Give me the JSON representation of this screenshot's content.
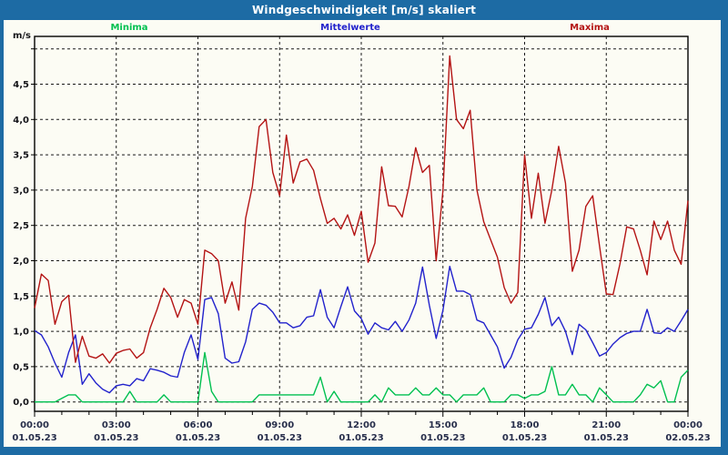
{
  "window": {
    "title": "Windgeschwindigkeit [m/s] skaliert"
  },
  "chart_data": {
    "type": "line",
    "title": "Windgeschwindigkeit [m/s] skaliert",
    "ylabel": "m/s",
    "xlabel": "",
    "x_start_hour": 0,
    "x_end_hour": 24,
    "x_step_minutes": 15,
    "grid": "both-dashed",
    "legend_position": "top",
    "ylim": [
      0,
      5
    ],
    "x_ticks": [
      {
        "hour": 0,
        "time": "00:00",
        "date": "01.05.23"
      },
      {
        "hour": 3,
        "time": "03:00",
        "date": "01.05.23"
      },
      {
        "hour": 6,
        "time": "06:00",
        "date": "01.05.23"
      },
      {
        "hour": 9,
        "time": "09:00",
        "date": "01.05.23"
      },
      {
        "hour": 12,
        "time": "12:00",
        "date": "01.05.23"
      },
      {
        "hour": 15,
        "time": "15:00",
        "date": "01.05.23"
      },
      {
        "hour": 18,
        "time": "18:00",
        "date": "01.05.23"
      },
      {
        "hour": 21,
        "time": "21:00",
        "date": "01.05.23"
      },
      {
        "hour": 24,
        "time": "00:00",
        "date": "02.05.23"
      }
    ],
    "y_grid": {
      "min": 0,
      "max": 5,
      "step": 0.5
    },
    "y_tick_labels": [
      "0,0",
      "0,5",
      "1,0",
      "1,5",
      "2,0",
      "2,5",
      "3,0",
      "3,5",
      "4,0",
      "4,5"
    ],
    "series": [
      {
        "key": "minima",
        "name": "Minima",
        "color": "#00c050",
        "values": [
          0,
          0,
          0,
          0,
          0.05,
          0.1,
          0.1,
          0,
          0,
          0,
          0,
          0,
          0,
          0,
          0.15,
          0,
          0,
          0,
          0,
          0.1,
          0,
          0,
          0,
          0,
          0,
          0.7,
          0.15,
          0,
          0,
          0,
          0,
          0,
          0,
          0.1,
          0.1,
          0.1,
          0.1,
          0.1,
          0.1,
          0.1,
          0.1,
          0.1,
          0.35,
          0,
          0.15,
          0,
          0,
          0,
          0,
          0,
          0.1,
          0,
          0.2,
          0.1,
          0.1,
          0.1,
          0.2,
          0.1,
          0.1,
          0.2,
          0.1,
          0.1,
          0,
          0.1,
          0.1,
          0.1,
          0.2,
          0,
          0,
          0,
          0.1,
          0.1,
          0.05,
          0.1,
          0.1,
          0.15,
          0.5,
          0.1,
          0.1,
          0.25,
          0.1,
          0.1,
          0,
          0.2,
          0.1,
          0,
          0,
          0,
          0,
          0.1,
          0.25,
          0.2,
          0.3,
          0,
          0,
          0.35,
          0.45
        ]
      },
      {
        "key": "mittelwerte",
        "name": "Mittelwerte",
        "color": "#2222cc",
        "values": [
          1.01,
          0.95,
          0.78,
          0.55,
          0.35,
          0.7,
          0.95,
          0.25,
          0.4,
          0.27,
          0.18,
          0.13,
          0.23,
          0.25,
          0.23,
          0.33,
          0.3,
          0.47,
          0.45,
          0.42,
          0.37,
          0.35,
          0.7,
          0.95,
          0.6,
          1.45,
          1.48,
          1.25,
          0.62,
          0.55,
          0.57,
          0.85,
          1.31,
          1.4,
          1.37,
          1.27,
          1.12,
          1.12,
          1.05,
          1.08,
          1.2,
          1.22,
          1.59,
          1.2,
          1.05,
          1.35,
          1.63,
          1.29,
          1.18,
          0.96,
          1.12,
          1.05,
          1.02,
          1.14,
          1,
          1.16,
          1.4,
          1.91,
          1.37,
          0.9,
          1.3,
          1.92,
          1.57,
          1.57,
          1.52,
          1.16,
          1.12,
          0.95,
          0.78,
          0.48,
          0.63,
          0.88,
          1.03,
          1.05,
          1.24,
          1.48,
          1.08,
          1.2,
          1,
          0.67,
          1.1,
          1.02,
          0.84,
          0.65,
          0.7,
          0.82,
          0.91,
          0.97,
          1,
          1,
          1.31,
          0.98,
          0.97,
          1.05,
          1,
          1.15,
          1.31
        ]
      },
      {
        "key": "maxima",
        "name": "Maxima",
        "color": "#b41414",
        "values": [
          1.33,
          1.81,
          1.72,
          1.1,
          1.42,
          1.51,
          0.56,
          0.93,
          0.65,
          0.62,
          0.68,
          0.55,
          0.69,
          0.73,
          0.75,
          0.62,
          0.7,
          1.05,
          1.31,
          1.61,
          1.48,
          1.2,
          1.45,
          1.4,
          1.1,
          2.15,
          2.1,
          2,
          1.4,
          1.7,
          1.3,
          2.6,
          3.05,
          3.9,
          4,
          3.25,
          2.92,
          3.78,
          3.1,
          3.4,
          3.44,
          3.28,
          2.88,
          2.53,
          2.6,
          2.45,
          2.65,
          2.36,
          2.7,
          1.98,
          2.25,
          3.33,
          2.78,
          2.77,
          2.62,
          3.05,
          3.6,
          3.25,
          3.35,
          2,
          3,
          4.9,
          4,
          3.87,
          4.13,
          3,
          2.55,
          2.3,
          2.05,
          1.62,
          1.4,
          1.55,
          3.5,
          2.6,
          3.24,
          2.53,
          3,
          3.62,
          3.1,
          1.85,
          2.15,
          2.77,
          2.92,
          2.21,
          1.53,
          1.52,
          1.95,
          2.48,
          2.45,
          2.15,
          1.8,
          2.56,
          2.3,
          2.56,
          2.15,
          1.95,
          2.85
        ]
      }
    ]
  }
}
